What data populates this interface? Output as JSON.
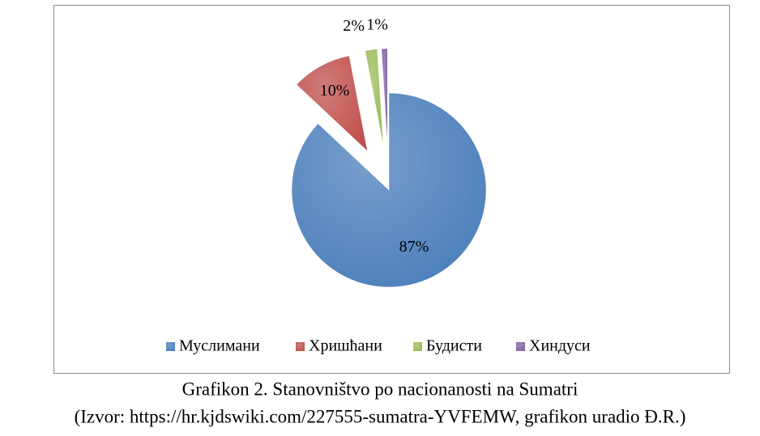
{
  "chart_data": {
    "type": "pie",
    "categories": [
      "Муслимани",
      "Хришћани",
      "Будисти",
      "Хиндуси"
    ],
    "values": [
      87,
      10,
      2,
      1
    ],
    "value_labels": [
      "87%",
      "10%",
      "2%",
      "1%"
    ],
    "colors": [
      "#4a7ebb",
      "#c0504d",
      "#9bbb59",
      "#8064a2"
    ],
    "legend": "bottom"
  },
  "caption": [
    "Grafikon 2. Stanovništvo po nacionanosti na Sumatri",
    "(Izvor: https://hr.kjdswiki.com/227555-sumatra-YVFEMW, grafikon uradio Đ.R.)"
  ]
}
